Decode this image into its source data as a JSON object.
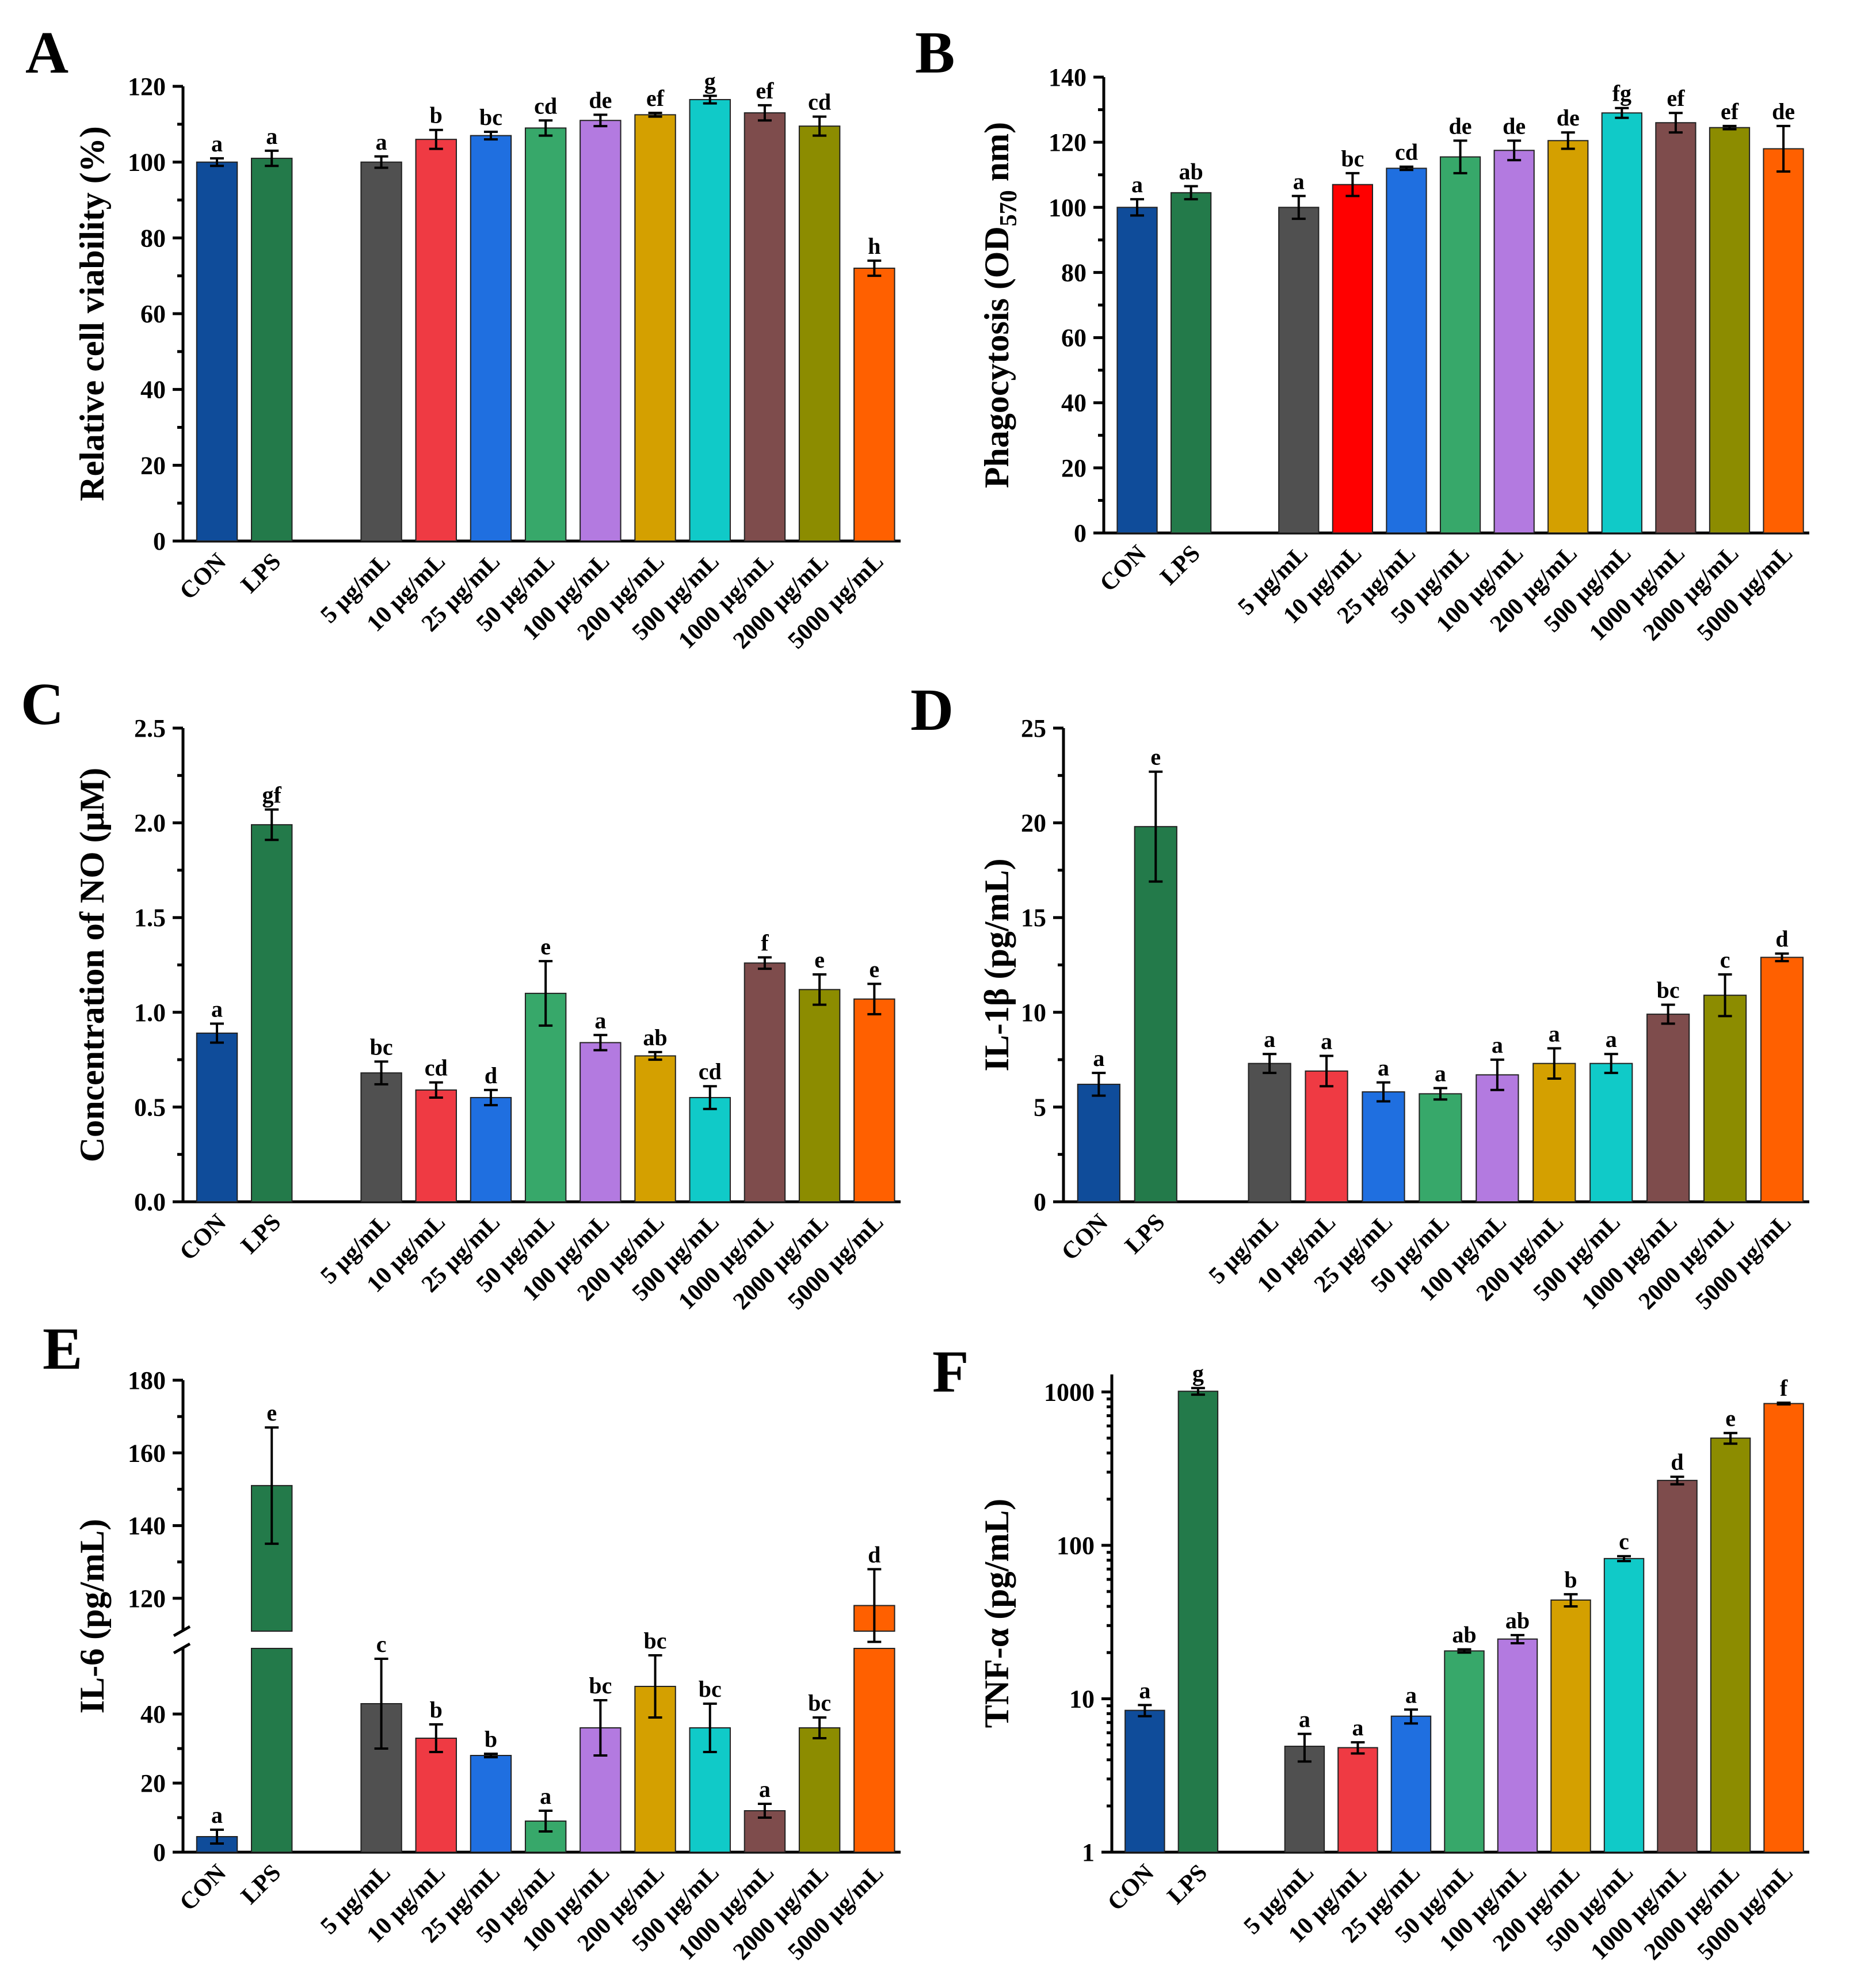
{
  "colors": [
    "#0f4c9a",
    "#237a4a",
    "#505050",
    "#ef3a43",
    "#1f6fe0",
    "#37a86a",
    "#b37ae0",
    "#d4a000",
    "#10cac8",
    "#7e4c4c",
    "#8c8c00",
    "#ff6000"
  ],
  "chart_data": [
    {
      "type": "bar",
      "panel": "A",
      "ylabel": "Relative cell viability (%)",
      "categories": [
        "CON",
        "LPS",
        "5 μg/mL",
        "10 μg/mL",
        "25 μg/mL",
        "50 μg/mL",
        "100 μg/mL",
        "200 μg/mL",
        "500 μg/mL",
        "1000 μg/mL",
        "2000 μg/mL",
        "5000 μg/mL"
      ],
      "values": [
        100,
        101,
        100,
        106,
        107,
        109,
        111,
        112.5,
        116.5,
        113,
        109.5,
        72
      ],
      "errors": [
        1,
        2,
        1.5,
        2.5,
        1,
        2,
        1.5,
        0.5,
        1,
        2,
        2.5,
        2
      ],
      "letters": [
        "a",
        "a",
        "a",
        "b",
        "bc",
        "cd",
        "de",
        "ef",
        "g",
        "ef",
        "cd",
        "h"
      ],
      "ylim": [
        0,
        120
      ],
      "yticks": [
        0,
        20,
        40,
        60,
        80,
        100,
        120
      ],
      "scale": "linear"
    },
    {
      "type": "bar",
      "panel": "B",
      "ylabel": "Phagocytosis (OD",
      "ylabel_sub": "570",
      "ylabel_end": " nm)",
      "categories": [
        "CON",
        "LPS",
        "5 μg/mL",
        "10 μg/mL",
        "25 μg/mL",
        "50 μg/mL",
        "100 μg/mL",
        "200 μg/mL",
        "500 μg/mL",
        "1000 μg/mL",
        "2000 μg/mL",
        "5000 μg/mL"
      ],
      "values": [
        100,
        104.5,
        100,
        107,
        112,
        115.5,
        117.5,
        120.5,
        129,
        126,
        124.5,
        118
      ],
      "errors": [
        2.5,
        2,
        3.5,
        3.5,
        0.5,
        5,
        3,
        2.5,
        1.5,
        3,
        0.5,
        7
      ],
      "letters": [
        "a",
        "ab",
        "a",
        "bc",
        "cd",
        "de",
        "de",
        "de",
        "fg",
        "ef",
        "ef",
        "de"
      ],
      "ylim": [
        0,
        140
      ],
      "yticks": [
        0,
        20,
        40,
        60,
        80,
        100,
        120,
        140
      ],
      "scale": "linear",
      "bar_color_override": {
        "3": "#ff0000"
      }
    },
    {
      "type": "bar",
      "panel": "C",
      "ylabel": "Concentration of NO (μM)",
      "categories": [
        "CON",
        "LPS",
        "5 μg/mL",
        "10 μg/mL",
        "25 μg/mL",
        "50 μg/mL",
        "100 μg/mL",
        "200 μg/mL",
        "500 μg/mL",
        "1000 μg/mL",
        "2000 μg/mL",
        "5000 μg/mL"
      ],
      "values": [
        0.89,
        1.99,
        0.68,
        0.59,
        0.55,
        1.1,
        0.84,
        0.77,
        0.55,
        1.26,
        1.12,
        1.07
      ],
      "errors": [
        0.05,
        0.08,
        0.06,
        0.04,
        0.04,
        0.17,
        0.04,
        0.02,
        0.06,
        0.03,
        0.08,
        0.08
      ],
      "letters": [
        "a",
        "gf",
        "bc",
        "cd",
        "d",
        "e",
        "a",
        "ab",
        "cd",
        "f",
        "e",
        "e"
      ],
      "ylim": [
        0,
        2.5
      ],
      "yticks": [
        "0.0",
        "0.5",
        "1.0",
        "1.5",
        "2.0",
        "2.5"
      ],
      "scale": "linear"
    },
    {
      "type": "bar",
      "panel": "D",
      "ylabel": "IL-1β (pg/mL)",
      "categories": [
        "CON",
        "LPS",
        "5 μg/mL",
        "10 μg/mL",
        "25 μg/mL",
        "50 μg/mL",
        "100 μg/mL",
        "200 μg/mL",
        "500 μg/mL",
        "1000 μg/mL",
        "2000 μg/mL",
        "5000 μg/mL"
      ],
      "values": [
        6.2,
        19.8,
        7.3,
        6.9,
        5.8,
        5.7,
        6.7,
        7.3,
        7.3,
        9.9,
        10.9,
        12.9
      ],
      "errors": [
        0.6,
        2.9,
        0.5,
        0.8,
        0.5,
        0.3,
        0.8,
        0.8,
        0.5,
        0.5,
        1.1,
        0.2
      ],
      "letters": [
        "a",
        "e",
        "a",
        "a",
        "a",
        "a",
        "a",
        "a",
        "a",
        "bc",
        "c",
        "d"
      ],
      "ylim": [
        0,
        25
      ],
      "yticks": [
        0,
        5,
        10,
        15,
        20,
        25
      ],
      "scale": "linear"
    },
    {
      "type": "bar",
      "panel": "E",
      "ylabel": "IL-6 (pg/mL)",
      "categories": [
        "CON",
        "LPS",
        "5 μg/mL",
        "10 μg/mL",
        "25 μg/mL",
        "50 μg/mL",
        "100 μg/mL",
        "200 μg/mL",
        "500 μg/mL",
        "1000 μg/mL",
        "2000 μg/mL",
        "5000 μg/mL"
      ],
      "values": [
        4.5,
        151,
        43,
        33,
        28,
        9,
        36,
        48,
        36,
        12,
        36,
        118
      ],
      "errors": [
        2,
        16,
        13,
        4,
        0.5,
        3,
        8,
        9,
        7,
        2,
        3,
        10
      ],
      "letters": [
        "a",
        "e",
        "c",
        "b",
        "b",
        "a",
        "bc",
        "bc",
        "bc",
        "a",
        "bc",
        "d"
      ],
      "ylim": [
        0,
        180
      ],
      "axis_break": [
        60,
        110
      ],
      "yticks": [
        0,
        20,
        40,
        120,
        140,
        160,
        180
      ],
      "scale": "broken"
    },
    {
      "type": "bar",
      "panel": "F",
      "ylabel": "TNF-α (pg/mL)",
      "categories": [
        "CON",
        "LPS",
        "5 μg/mL",
        "10 μg/mL",
        "25 μg/mL",
        "50 μg/mL",
        "100 μg/mL",
        "200 μg/mL",
        "500 μg/mL",
        "1000 μg/mL",
        "2000 μg/mL",
        "5000 μg/mL"
      ],
      "values": [
        8.4,
        1010,
        4.9,
        4.8,
        7.7,
        20.5,
        24.5,
        44,
        82,
        265,
        500,
        840
      ],
      "errors": [
        0.7,
        50,
        1,
        0.4,
        0.8,
        0.5,
        1.5,
        4,
        3,
        15,
        40,
        10
      ],
      "letters": [
        "a",
        "g",
        "a",
        "a",
        "a",
        "ab",
        "ab",
        "b",
        "c",
        "d",
        "e",
        "f"
      ],
      "ylim": [
        1,
        1300
      ],
      "yticks": [
        1,
        10,
        100,
        1000
      ],
      "scale": "log"
    }
  ]
}
